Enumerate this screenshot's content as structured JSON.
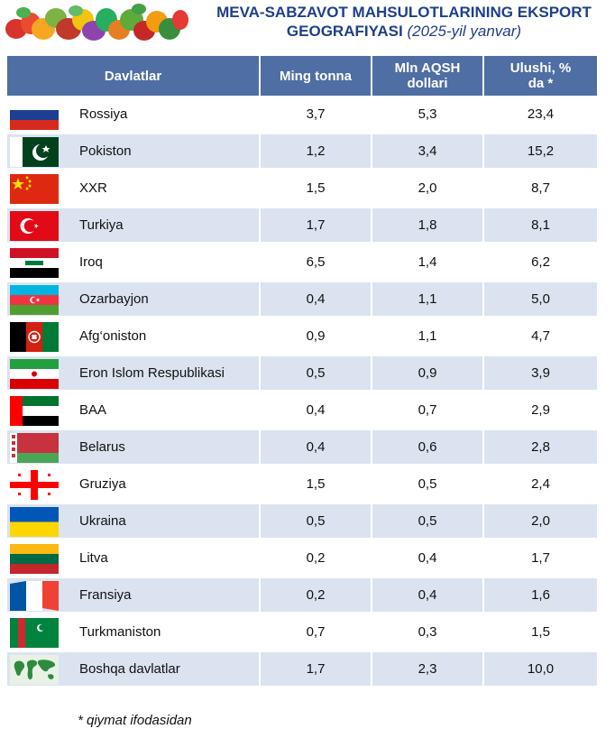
{
  "title": {
    "line1": "MEVA-SABZAVOT MAHSULOTLARINING EKSPORT",
    "line2": "GEOGRAFIYASI",
    "line2_sub": "(2025-yil yanvar)"
  },
  "table": {
    "headers": [
      "Davlatlar",
      "Ming tonna",
      "Mln  AQSH dollari",
      "Ulushi, % da *"
    ],
    "rows": [
      {
        "country": "Rossiya",
        "tonna": "3,7",
        "dollar": "5,3",
        "share": "23,4",
        "flag": "russia-flag-icon"
      },
      {
        "country": "Pokiston",
        "tonna": "1,2",
        "dollar": "3,4",
        "share": "15,2",
        "flag": "pakistan-flag-icon"
      },
      {
        "country": "XXR",
        "tonna": "1,5",
        "dollar": "2,0",
        "share": "8,7",
        "flag": "china-flag-icon"
      },
      {
        "country": "Turkiya",
        "tonna": "1,7",
        "dollar": "1,8",
        "share": "8,1",
        "flag": "turkey-flag-icon"
      },
      {
        "country": "Iroq",
        "tonna": "6,5",
        "dollar": "1,4",
        "share": "6,2",
        "flag": "iraq-flag-icon"
      },
      {
        "country": "Ozarbayjon",
        "tonna": "0,4",
        "dollar": "1,1",
        "share": "5,0",
        "flag": "azerbaijan-flag-icon"
      },
      {
        "country": "Afg‘oniston",
        "tonna": "0,9",
        "dollar": "1,1",
        "share": "4,7",
        "flag": "afghanistan-flag-icon"
      },
      {
        "country": "Eron Islom Respublikasi",
        "tonna": "0,5",
        "dollar": "0,9",
        "share": "3,9",
        "flag": "iran-flag-icon"
      },
      {
        "country": "BAA",
        "tonna": "0,4",
        "dollar": "0,7",
        "share": "2,9",
        "flag": "uae-flag-icon"
      },
      {
        "country": "Belarus",
        "tonna": "0,4",
        "dollar": "0,6",
        "share": "2,8",
        "flag": "belarus-flag-icon"
      },
      {
        "country": "Gruziya",
        "tonna": "1,5",
        "dollar": "0,5",
        "share": "2,4",
        "flag": "georgia-flag-icon"
      },
      {
        "country": "Ukraina",
        "tonna": "0,5",
        "dollar": "0,5",
        "share": "2,0",
        "flag": "ukraine-flag-icon"
      },
      {
        "country": "Litva",
        "tonna": "0,2",
        "dollar": "0,4",
        "share": "1,7",
        "flag": "lithuania-flag-icon"
      },
      {
        "country": "Fransiya",
        "tonna": "0,2",
        "dollar": "0,4",
        "share": "1,6",
        "flag": "france-flag-icon"
      },
      {
        "country": "Turkmaniston",
        "tonna": "0,7",
        "dollar": "0,3",
        "share": "1,5",
        "flag": "turkmenistan-flag-icon"
      },
      {
        "country": "Boshqa davlatlar",
        "tonna": "1,7",
        "dollar": "2,3",
        "share": "10,0",
        "flag": "world-map-icon"
      }
    ]
  },
  "footnote": "* qiymat ifodasidan",
  "colors": {
    "title": "#1f3f8a",
    "header_bg": "#4f6ea3",
    "stripe": "#dbe3f0"
  }
}
